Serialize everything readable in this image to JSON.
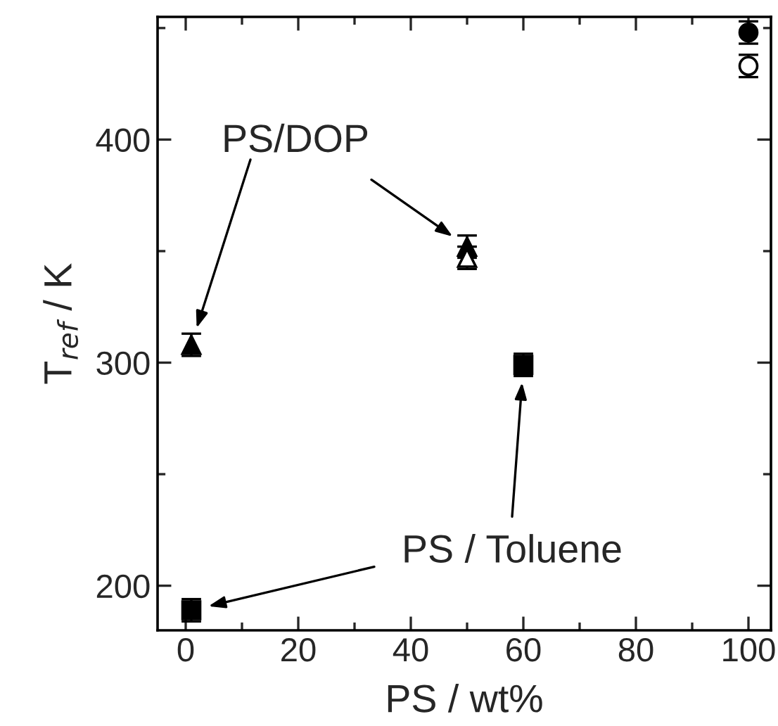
{
  "chart_data": {
    "type": "scatter",
    "xlabel": "PS / wt%",
    "ylabel": "T$_{ref}$ / K",
    "xlim": [
      -5,
      104
    ],
    "ylim": [
      180,
      455
    ],
    "xticks": [
      0,
      20,
      40,
      60,
      80,
      100
    ],
    "yticks": [
      200,
      300,
      400
    ],
    "grid": false,
    "legend": false,
    "series": [
      {
        "marker": "circle",
        "color": "#000000",
        "x": [
          100
        ],
        "values": [
          448
        ],
        "errors": [
          5
        ]
      },
      {
        "marker": "circle",
        "color": "#ffffff",
        "x": [
          100
        ],
        "values": [
          433
        ],
        "errors": [
          5
        ]
      },
      {
        "marker": "triangle",
        "color": "#000000",
        "x": [
          1,
          50
        ],
        "values": [
          308,
          352
        ],
        "errors": [
          5,
          5
        ]
      },
      {
        "marker": "triangle",
        "color": "#ffffff",
        "x": [
          50
        ],
        "values": [
          347
        ],
        "errors": [
          5
        ]
      },
      {
        "marker": "square",
        "color": "#000000",
        "x": [
          1,
          60
        ],
        "values": [
          189,
          299
        ],
        "errors": [
          5,
          5
        ]
      }
    ],
    "annotations": [
      "PS/DOP",
      "PS / Toluene"
    ]
  }
}
